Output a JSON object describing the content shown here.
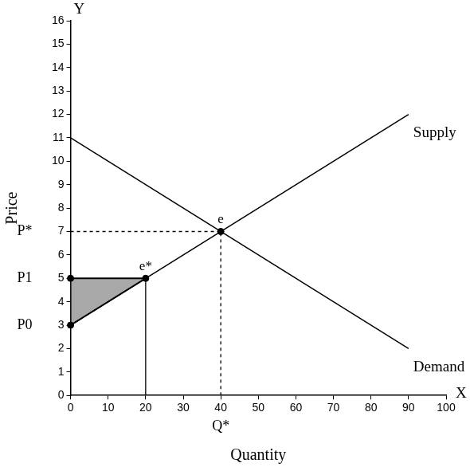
{
  "chart_data": {
    "type": "line",
    "x_label": "Quantity",
    "y_label": "Price",
    "x_axis_name": "X",
    "y_axis_name": "Y",
    "xlim": [
      0,
      100
    ],
    "ylim": [
      0,
      16
    ],
    "xticks": [
      0,
      10,
      20,
      30,
      40,
      50,
      60,
      70,
      80,
      90,
      100
    ],
    "yticks": [
      0,
      1,
      2,
      3,
      4,
      5,
      6,
      7,
      8,
      9,
      10,
      11,
      12,
      13,
      14,
      15,
      16
    ],
    "grid": false,
    "legend": "none",
    "series": [
      {
        "name": "Supply",
        "color": "#000000",
        "line_style": "solid",
        "x": [
          0,
          90
        ],
        "values": [
          3,
          12
        ]
      },
      {
        "name": "Demand",
        "color": "#000000",
        "line_style": "solid",
        "x": [
          0,
          90
        ],
        "values": [
          11,
          2
        ]
      }
    ],
    "guide_lines": [
      {
        "x": [
          0,
          40
        ],
        "y": [
          7,
          7
        ],
        "line_style": "dashed"
      },
      {
        "x": [
          40,
          40
        ],
        "y": [
          0,
          7
        ],
        "line_style": "dashed"
      },
      {
        "x": [
          20,
          20
        ],
        "y": [
          0,
          5
        ],
        "line_style": "solid"
      }
    ],
    "points": [
      {
        "label": "e",
        "x": 40,
        "y": 7
      },
      {
        "label": "e*",
        "x": 20,
        "y": 5
      },
      {
        "x": 0,
        "y": 5
      },
      {
        "x": 0,
        "y": 3
      }
    ],
    "shaded_region": {
      "x": [
        0,
        0,
        20
      ],
      "y": [
        3,
        5,
        5
      ],
      "color": "#a8a8a8"
    },
    "axis_markers": [
      {
        "axis": "y",
        "value": 7,
        "label": "P*"
      },
      {
        "axis": "y",
        "value": 5,
        "label": "P1"
      },
      {
        "axis": "y",
        "value": 3,
        "label": "P0"
      },
      {
        "axis": "x",
        "value": 40,
        "label": "Q*"
      }
    ]
  }
}
